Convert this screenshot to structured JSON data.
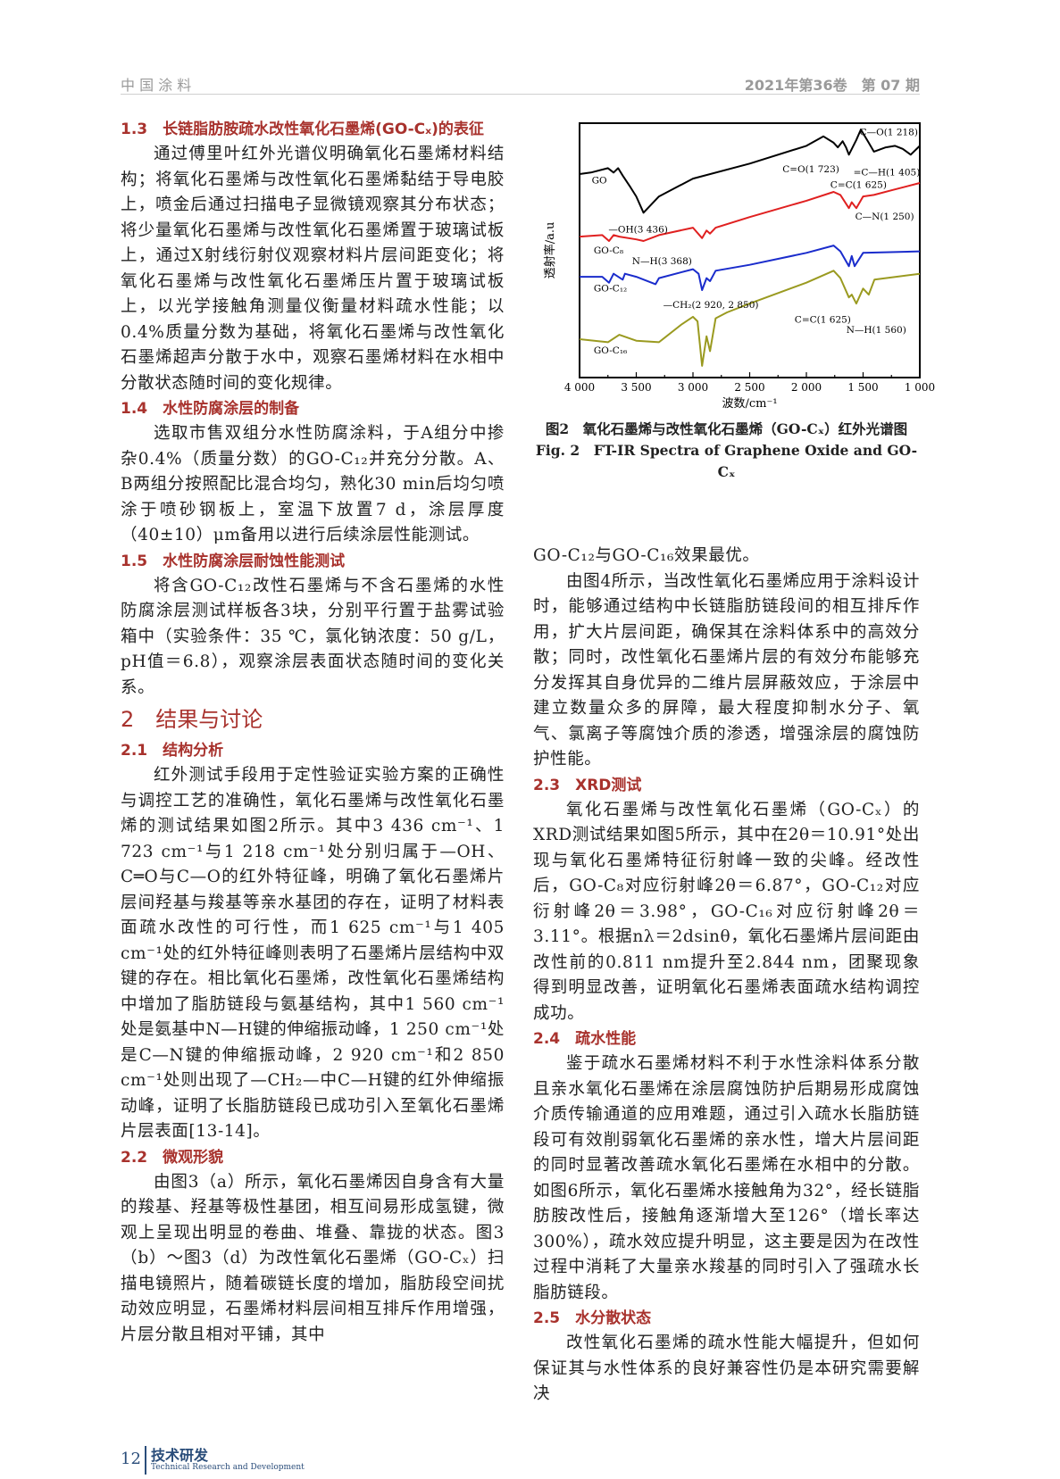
{
  "header": {
    "journal": "中 国 涂 料",
    "issue": "2021年第36卷　第 07 期"
  },
  "left": {
    "s1_3": {
      "heading": "1.3　长链脂肪胺疏水改性氧化石墨烯(GO-Cₓ)的表征",
      "p1": "通过傅里叶红外光谱仪明确氧化石墨烯材料结构；将氧化石墨烯与改性氧化石墨烯黏结于导电胶上，喷金后通过扫描电子显微镜观察其分布状态；将少量氧化石墨烯与改性氧化石墨烯置于玻璃试板上，通过X射线衍射仪观察材料片层间距变化；将氧化石墨烯与改性氧化石墨烯压片置于玻璃试板上，以光学接触角测量仪衡量材料疏水性能；以0.4%质量分数为基础，将氧化石墨烯与改性氧化石墨烯超声分散于水中，观察石墨烯材料在水相中分散状态随时间的变化规律。"
    },
    "s1_4": {
      "heading": "1.4　水性防腐涂层的制备",
      "p1": "选取市售双组分水性防腐涂料，于A组分中掺杂0.4%（质量分数）的GO-C₁₂并充分分散。A、B两组分按照配比混合均匀，熟化30 min后均匀喷涂于喷砂钢板上，室温下放置7 d，涂层厚度（40±10）μm备用以进行后续涂层性能测试。"
    },
    "s1_5": {
      "heading": "1.5　水性防腐涂层耐蚀性能测试",
      "p1": "将含GO-C₁₂改性石墨烯与不含石墨烯的水性防腐涂层测试样板各3块，分别平行置于盐雾试验箱中（实验条件：35 ℃，氯化钠浓度：50 g/L，pH值＝6.8），观察涂层表面状态随时间的变化关系。"
    },
    "s2": {
      "heading": "2　结果与讨论"
    },
    "s2_1": {
      "heading": "2.1　结构分析",
      "p1": "红外测试手段用于定性验证实验方案的正确性与调控工艺的准确性，氧化石墨烯与改性氧化石墨烯的测试结果如图2所示。其中3 436 cm⁻¹、1 723 cm⁻¹与1 218 cm⁻¹处分别归属于—OH、C═O与C—O的红外特征峰，明确了氧化石墨烯片层间羟基与羧基等亲水基团的存在，证明了材料表面疏水改性的可行性，而1 625 cm⁻¹与1 405 cm⁻¹处的红外特征峰则表明了石墨烯片层结构中双键的存在。相比氧化石墨烯，改性氧化石墨烯结构中增加了脂肪链段与氨基结构，其中1 560 cm⁻¹处是氨基中N—H键的伸缩振动峰，1 250 cm⁻¹处是C—N键的伸缩振动峰，2 920 cm⁻¹和2 850 cm⁻¹处则出现了—CH₂—中C—H键的红外伸缩振动峰，证明了长脂肪链段已成功引入至氧化石墨烯片层表面[13-14]。"
    },
    "s2_2": {
      "heading": "2.2　微观形貌",
      "p1": "由图3（a）所示，氧化石墨烯因自身含有大量的羧基、羟基等极性基团，相互间易形成氢键，微观上呈现出明显的卷曲、堆叠、靠拢的状态。图3（b）～图3（d）为改性氧化石墨烯（GO-Cₓ）扫描电镜照片，随着碳链长度的增加，脂肪段空间扰动效应明显，石墨烯材料层间相互排斥作用增强，片层分散且相对平铺，其中"
    }
  },
  "figure": {
    "caption_cn": "图2　氧化石墨烯与改性氧化石墨烯（GO-Cₓ）红外光谱图",
    "caption_en": "Fig. 2　FT-IR Spectra of Graphene Oxide and GO-Cₓ"
  },
  "chart_data": {
    "type": "line",
    "xlabel": "波数/cm⁻¹",
    "ylabel": "透射率/a.u",
    "xlim": [
      4000,
      1000
    ],
    "x_reversed": true,
    "ylim": [
      0,
      100
    ],
    "y_ticks_shown": false,
    "x_ticks": [
      "4 000",
      "3 500",
      "3 000",
      "2 500",
      "2 000",
      "1 500",
      "1 000"
    ],
    "x_tick_values": [
      4000,
      3500,
      3000,
      2500,
      2000,
      1500,
      1000
    ],
    "grid": false,
    "series": [
      {
        "name": "GO",
        "color": "#000000",
        "x": [
          4000,
          3900,
          3750,
          3700,
          3660,
          3620,
          3550,
          3500,
          3436,
          3300,
          3000,
          2500,
          2000,
          1850,
          1760,
          1723,
          1680,
          1650,
          1625,
          1560,
          1520,
          1450,
          1405,
          1300,
          1218,
          1150,
          1080,
          1000
        ],
        "y": [
          80.0,
          80.6,
          82.3,
          80.6,
          82.3,
          79.4,
          74.7,
          71.2,
          64.8,
          71.2,
          78.2,
          84.1,
          91.1,
          94.8,
          92.3,
          90.5,
          92.9,
          90.5,
          87.6,
          93.4,
          97.5,
          92.3,
          88.8,
          90.5,
          91.1,
          89.9,
          87.6,
          91.1
        ]
      },
      {
        "name": "GO-C₈",
        "color": "#e02020",
        "x": [
          4000,
          3800,
          3740,
          3700,
          3650,
          3500,
          3436,
          3300,
          3000,
          2920,
          2880,
          2850,
          2800,
          2500,
          2000,
          1760,
          1700,
          1625,
          1600,
          1560,
          1500,
          1405,
          1250,
          1000
        ],
        "y": [
          55.4,
          56.0,
          53.7,
          56.0,
          55.4,
          54.3,
          53.7,
          56.0,
          58.9,
          54.8,
          57.8,
          56.6,
          58.9,
          63.1,
          69.5,
          73.0,
          71.8,
          66.6,
          68.9,
          66.6,
          71.2,
          71.8,
          73.6,
          76.5
        ]
      },
      {
        "name": "GO-C₁₂",
        "color": "#1a2ccc",
        "x": [
          4000,
          3800,
          3740,
          3700,
          3620,
          3600,
          3500,
          3330,
          3300,
          3000,
          2950,
          2920,
          2880,
          2850,
          2800,
          2500,
          2000,
          1760,
          1700,
          1625,
          1600,
          1575,
          1500,
          1000
        ],
        "y": [
          39.6,
          39.6,
          37.3,
          40.8,
          38.5,
          40.8,
          39.6,
          36.7,
          39.1,
          42.6,
          40.8,
          34.4,
          39.1,
          37.9,
          42.0,
          44.3,
          49.0,
          51.9,
          49.6,
          43.8,
          47.8,
          43.8,
          49.0,
          49.6
        ]
      },
      {
        "name": "GO-C₁₆",
        "color": "#9a9a20",
        "x": [
          4000,
          3750,
          3650,
          3500,
          3300,
          3100,
          3000,
          2960,
          2920,
          2880,
          2850,
          2800,
          2700,
          2500,
          2000,
          1760,
          1700,
          1625,
          1600,
          1560,
          1500,
          1450,
          1400,
          1000
        ],
        "y": [
          15.1,
          13.9,
          16.8,
          14.5,
          13.9,
          20.9,
          23.9,
          22.1,
          4.6,
          16.2,
          10.4,
          23.3,
          25.6,
          29.1,
          37.3,
          42.0,
          39.1,
          31.5,
          32.6,
          29.1,
          35.0,
          32.6,
          38.5,
          40.8
        ]
      }
    ],
    "annotations": [
      {
        "text": "C—O(1 218)",
        "x": 1531,
        "y": 96.4
      },
      {
        "text": "C=O(1 723)",
        "x": 2211,
        "y": 81.8
      },
      {
        "text": "=C—H(1 405)",
        "x": 1586,
        "y": 80.6
      },
      {
        "text": "C=C(1 625)",
        "x": 1789,
        "y": 75.7
      },
      {
        "text": "C—N(1 250)",
        "x": 1570,
        "y": 63.1
      },
      {
        "text": "GO",
        "x": 3893,
        "y": 77.3
      },
      {
        "text": "—OH(3 436)",
        "x": 3745,
        "y": 58.1
      },
      {
        "text": "GO-C₈",
        "x": 3875,
        "y": 49.9
      },
      {
        "text": "N—H(3 368)",
        "x": 3537,
        "y": 45.7
      },
      {
        "text": "GO-C₁₂",
        "x": 3875,
        "y": 35.0
      },
      {
        "text": "—CH₂(2 920, 2 850)",
        "x": 3263,
        "y": 28.5
      },
      {
        "text": "C=C(1 625)",
        "x": 2104,
        "y": 22.7
      },
      {
        "text": "N—H(1 560)",
        "x": 1648,
        "y": 18.6
      },
      {
        "text": "GO-C₁₆",
        "x": 3875,
        "y": 10.6
      }
    ]
  },
  "right": {
    "cont": "GO-C₁₂与GO-C₁₆效果最优。",
    "p_fig4": "由图4所示，当改性氧化石墨烯应用于涂料设计时，能够通过结构中长链脂肪链段间的相互排斥作用，扩大片层间距，确保其在涂料体系中的高效分散；同时，改性氧化石墨烯片层的有效分布能够充分发挥其自身优异的二维片层屏蔽效应，于涂层中建立数量众多的屏障，最大程度抑制水分子、氧气、氯离子等腐蚀介质的渗透，增强涂层的腐蚀防护性能。",
    "s2_3": {
      "heading": "2.3　XRD测试",
      "p1": "氧化石墨烯与改性氧化石墨烯（GO-Cₓ）的XRD测试结果如图5所示，其中在2θ＝10.91°处出现与氧化石墨烯特征衍射峰一致的尖峰。经改性后，GO-C₈对应衍射峰2θ＝6.87°，GO-C₁₂对应衍射峰2θ＝3.98°，GO-C₁₆对应衍射峰2θ＝3.11°。根据nλ＝2dsinθ，氧化石墨烯片层间距由改性前的0.811 nm提升至2.844 nm，团聚现象得到明显改善，证明氧化石墨烯表面疏水结构调控成功。"
    },
    "s2_4": {
      "heading": "2.4　疏水性能",
      "p1": "鉴于疏水石墨烯材料不利于水性涂料体系分散且亲水氧化石墨烯在涂层腐蚀防护后期易形成腐蚀介质传输通道的应用难题，通过引入疏水长脂肪链段可有效削弱氧化石墨烯的亲水性，增大片层间距的同时显著改善疏水氧化石墨烯在水相中的分散。如图6所示，氧化石墨烯水接触角为32°，经长链脂肪胺改性后，接触角逐渐增大至126°（增长率达300%），疏水效应提升明显，这主要是因为在改性过程中消耗了大量亲水羧基的同时引入了强疏水长脂肪链段。"
    },
    "s2_5": {
      "heading": "2.5　水分散状态",
      "p1": "改性氧化石墨烯的疏水性能大幅提升，但如何保证其与水性体系的良好兼容性仍是本研究需要解决"
    }
  },
  "footer": {
    "page": "12",
    "section": "技术研发",
    "section_en": "Technical Research and Development"
  }
}
